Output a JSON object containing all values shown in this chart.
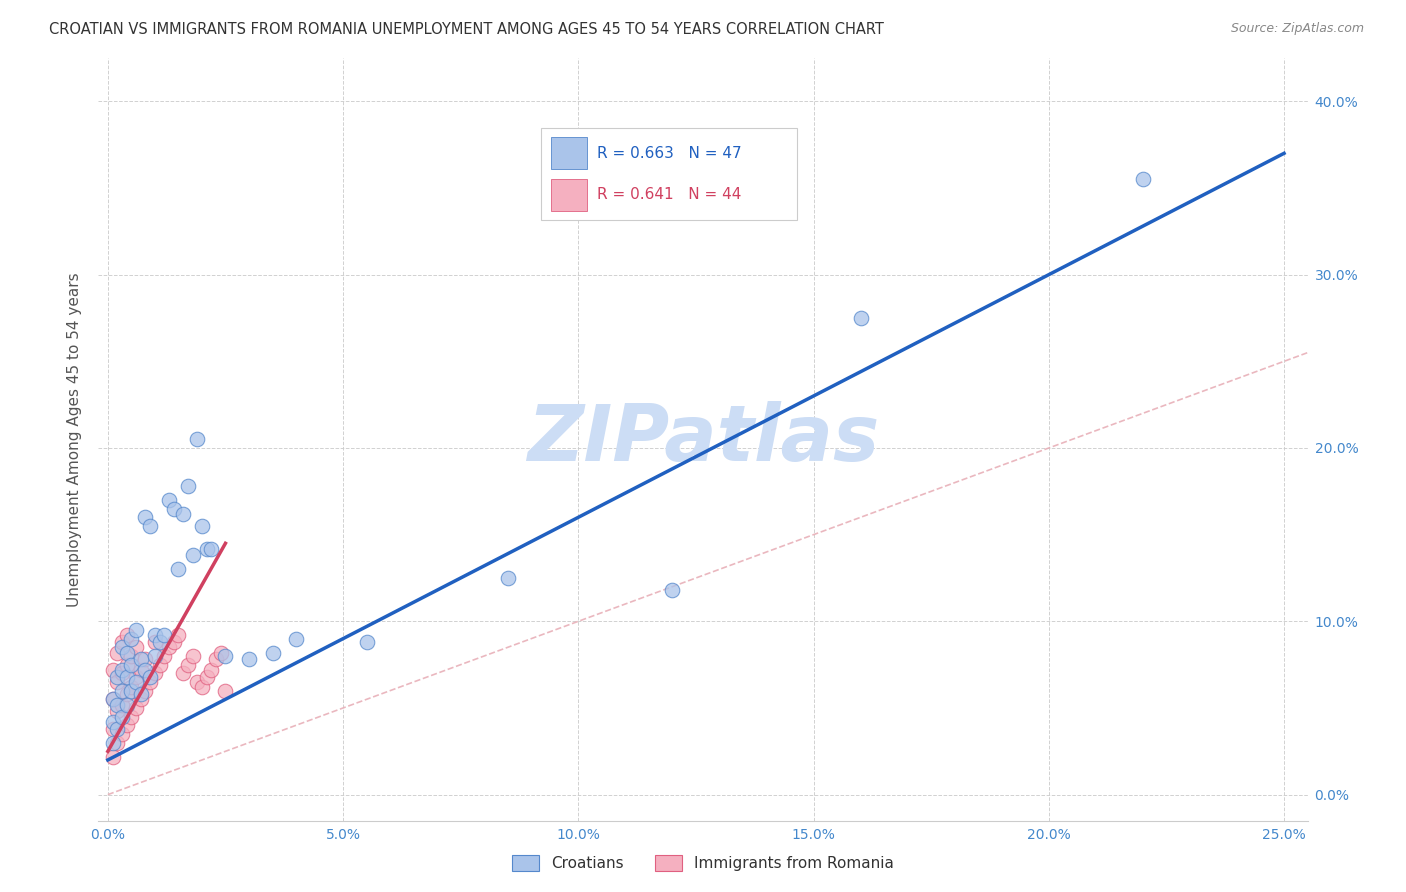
{
  "title": "CROATIAN VS IMMIGRANTS FROM ROMANIA UNEMPLOYMENT AMONG AGES 45 TO 54 YEARS CORRELATION CHART",
  "source": "Source: ZipAtlas.com",
  "ylabel": "Unemployment Among Ages 45 to 54 years",
  "xlim": [
    -0.002,
    0.255
  ],
  "ylim": [
    -0.015,
    0.425
  ],
  "xticks": [
    0.0,
    0.05,
    0.1,
    0.15,
    0.2,
    0.25
  ],
  "xticklabels": [
    "0.0%",
    "5.0%",
    "10.0%",
    "15.0%",
    "20.0%",
    "25.0%"
  ],
  "yticks": [
    0.0,
    0.1,
    0.2,
    0.3,
    0.4
  ],
  "yticklabels": [
    "0.0%",
    "10.0%",
    "20.0%",
    "30.0%",
    "40.0%"
  ],
  "croatian_fill": "#aac4ea",
  "croatian_edge": "#5588cc",
  "romania_fill": "#f5b0c0",
  "romania_edge": "#e06080",
  "regline_blue": "#2060c0",
  "regline_pink": "#d04060",
  "ref_line_color": "#e8b0b8",
  "watermark_color": "#ccddf5",
  "axis_color": "#4488cc",
  "R1": 0.663,
  "N1": 47,
  "R2": 0.641,
  "N2": 44,
  "croatians_x": [
    0.001,
    0.001,
    0.001,
    0.002,
    0.002,
    0.002,
    0.003,
    0.003,
    0.003,
    0.003,
    0.004,
    0.004,
    0.004,
    0.005,
    0.005,
    0.005,
    0.006,
    0.006,
    0.007,
    0.007,
    0.008,
    0.008,
    0.009,
    0.009,
    0.01,
    0.01,
    0.011,
    0.012,
    0.013,
    0.014,
    0.015,
    0.016,
    0.017,
    0.018,
    0.019,
    0.02,
    0.021,
    0.022,
    0.025,
    0.03,
    0.035,
    0.04,
    0.055,
    0.085,
    0.12,
    0.16,
    0.22
  ],
  "croatians_y": [
    0.03,
    0.042,
    0.055,
    0.038,
    0.052,
    0.068,
    0.045,
    0.06,
    0.072,
    0.085,
    0.052,
    0.068,
    0.082,
    0.06,
    0.075,
    0.09,
    0.065,
    0.095,
    0.058,
    0.078,
    0.072,
    0.16,
    0.068,
    0.155,
    0.08,
    0.092,
    0.088,
    0.092,
    0.17,
    0.165,
    0.13,
    0.162,
    0.178,
    0.138,
    0.205,
    0.155,
    0.142,
    0.142,
    0.08,
    0.078,
    0.082,
    0.09,
    0.088,
    0.125,
    0.118,
    0.275,
    0.355
  ],
  "romania_x": [
    0.001,
    0.001,
    0.001,
    0.001,
    0.002,
    0.002,
    0.002,
    0.002,
    0.003,
    0.003,
    0.003,
    0.003,
    0.004,
    0.004,
    0.004,
    0.004,
    0.005,
    0.005,
    0.005,
    0.006,
    0.006,
    0.006,
    0.007,
    0.007,
    0.008,
    0.008,
    0.009,
    0.01,
    0.01,
    0.011,
    0.012,
    0.013,
    0.014,
    0.015,
    0.016,
    0.017,
    0.018,
    0.019,
    0.02,
    0.021,
    0.022,
    0.023,
    0.024,
    0.025
  ],
  "romania_y": [
    0.022,
    0.038,
    0.055,
    0.072,
    0.03,
    0.048,
    0.065,
    0.082,
    0.035,
    0.052,
    0.07,
    0.088,
    0.04,
    0.058,
    0.075,
    0.092,
    0.045,
    0.062,
    0.08,
    0.05,
    0.068,
    0.085,
    0.055,
    0.072,
    0.06,
    0.078,
    0.065,
    0.07,
    0.088,
    0.075,
    0.08,
    0.085,
    0.088,
    0.092,
    0.07,
    0.075,
    0.08,
    0.065,
    0.062,
    0.068,
    0.072,
    0.078,
    0.082,
    0.06
  ],
  "blue_line_x": [
    0.0,
    0.25
  ],
  "blue_line_y": [
    0.02,
    0.37
  ],
  "pink_line_x": [
    0.0,
    0.025
  ],
  "pink_line_y": [
    0.025,
    0.145
  ],
  "ref_line_x": [
    0.0,
    0.4
  ],
  "ref_line_y": [
    0.0,
    0.4
  ]
}
